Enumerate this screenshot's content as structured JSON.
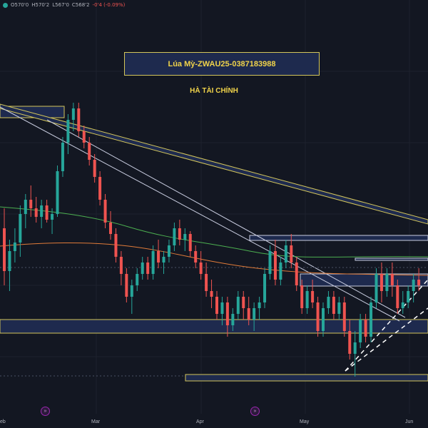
{
  "ohlc": {
    "open": "O570'0",
    "high": "H570'2",
    "low": "L567'0",
    "close": "C568'2",
    "change": "-0'4 (-0.09%)"
  },
  "title": "Lúa Mỳ-ZWAU25-0387183988",
  "subtitle": "HÀ TÀI CHÍNH",
  "x_axis": [
    "eb",
    "Mar",
    "Apr",
    "May",
    "Jun"
  ],
  "event_icons": [
    "event-icon",
    "event-icon"
  ],
  "colors": {
    "background": "#131722",
    "up": "#26a69a",
    "down": "#ef5350",
    "zone_fill": "#1e2a4e",
    "zone_border": "#d4c65a",
    "text_accent": "#f0d34a",
    "ma_long": "#4caf50",
    "ma_short": "#e07b39"
  },
  "chart_data": {
    "type": "candlestick",
    "y_axis": "price (not printed)",
    "candles": [
      {
        "o": 40,
        "h": 47,
        "l": 20,
        "c": 25
      },
      {
        "o": 25,
        "h": 36,
        "l": 18,
        "c": 32
      },
      {
        "o": 32,
        "h": 40,
        "l": 28,
        "c": 35
      },
      {
        "o": 35,
        "h": 48,
        "l": 30,
        "c": 45
      },
      {
        "o": 45,
        "h": 52,
        "l": 40,
        "c": 50
      },
      {
        "o": 50,
        "h": 55,
        "l": 44,
        "c": 47
      },
      {
        "o": 47,
        "h": 51,
        "l": 42,
        "c": 44
      },
      {
        "o": 44,
        "h": 50,
        "l": 40,
        "c": 48
      },
      {
        "o": 48,
        "h": 50,
        "l": 42,
        "c": 43
      },
      {
        "o": 43,
        "h": 47,
        "l": 38,
        "c": 45
      },
      {
        "o": 45,
        "h": 62,
        "l": 44,
        "c": 60
      },
      {
        "o": 60,
        "h": 72,
        "l": 58,
        "c": 70
      },
      {
        "o": 70,
        "h": 80,
        "l": 66,
        "c": 78
      },
      {
        "o": 78,
        "h": 84,
        "l": 74,
        "c": 82
      },
      {
        "o": 82,
        "h": 84,
        "l": 72,
        "c": 74
      },
      {
        "o": 74,
        "h": 76,
        "l": 68,
        "c": 70
      },
      {
        "o": 70,
        "h": 72,
        "l": 62,
        "c": 64
      },
      {
        "o": 64,
        "h": 66,
        "l": 56,
        "c": 58
      },
      {
        "o": 58,
        "h": 60,
        "l": 48,
        "c": 50
      },
      {
        "o": 50,
        "h": 52,
        "l": 40,
        "c": 42
      },
      {
        "o": 42,
        "h": 46,
        "l": 36,
        "c": 38
      },
      {
        "o": 38,
        "h": 40,
        "l": 28,
        "c": 30
      },
      {
        "o": 30,
        "h": 32,
        "l": 20,
        "c": 24
      },
      {
        "o": 24,
        "h": 26,
        "l": 14,
        "c": 16
      },
      {
        "o": 16,
        "h": 22,
        "l": 10,
        "c": 20
      },
      {
        "o": 20,
        "h": 26,
        "l": 18,
        "c": 24
      },
      {
        "o": 24,
        "h": 30,
        "l": 22,
        "c": 28
      },
      {
        "o": 28,
        "h": 30,
        "l": 22,
        "c": 24
      },
      {
        "o": 24,
        "h": 34,
        "l": 22,
        "c": 32
      },
      {
        "o": 32,
        "h": 36,
        "l": 26,
        "c": 28
      },
      {
        "o": 28,
        "h": 32,
        "l": 24,
        "c": 30
      },
      {
        "o": 30,
        "h": 36,
        "l": 28,
        "c": 34
      },
      {
        "o": 34,
        "h": 42,
        "l": 32,
        "c": 40
      },
      {
        "o": 40,
        "h": 43,
        "l": 34,
        "c": 36
      },
      {
        "o": 36,
        "h": 40,
        "l": 32,
        "c": 38
      },
      {
        "o": 38,
        "h": 39,
        "l": 30,
        "c": 32
      },
      {
        "o": 32,
        "h": 34,
        "l": 26,
        "c": 28
      },
      {
        "o": 28,
        "h": 32,
        "l": 22,
        "c": 24
      },
      {
        "o": 24,
        "h": 28,
        "l": 16,
        "c": 18
      },
      {
        "o": 18,
        "h": 22,
        "l": 12,
        "c": 16
      },
      {
        "o": 16,
        "h": 18,
        "l": 8,
        "c": 10
      },
      {
        "o": 10,
        "h": 16,
        "l": 6,
        "c": 14
      },
      {
        "o": 14,
        "h": 16,
        "l": 2,
        "c": 6
      },
      {
        "o": 6,
        "h": 12,
        "l": 4,
        "c": 10
      },
      {
        "o": 10,
        "h": 18,
        "l": 8,
        "c": 16
      },
      {
        "o": 16,
        "h": 18,
        "l": 8,
        "c": 12
      },
      {
        "o": 12,
        "h": 16,
        "l": 6,
        "c": 8
      },
      {
        "o": 8,
        "h": 14,
        "l": 4,
        "c": 12
      },
      {
        "o": 12,
        "h": 16,
        "l": 8,
        "c": 14
      },
      {
        "o": 14,
        "h": 26,
        "l": 12,
        "c": 24
      },
      {
        "o": 24,
        "h": 34,
        "l": 22,
        "c": 32
      },
      {
        "o": 32,
        "h": 36,
        "l": 20,
        "c": 22
      },
      {
        "o": 22,
        "h": 30,
        "l": 20,
        "c": 28
      },
      {
        "o": 28,
        "h": 36,
        "l": 26,
        "c": 34
      },
      {
        "o": 34,
        "h": 38,
        "l": 26,
        "c": 28
      },
      {
        "o": 28,
        "h": 30,
        "l": 18,
        "c": 20
      },
      {
        "o": 20,
        "h": 22,
        "l": 10,
        "c": 12
      },
      {
        "o": 12,
        "h": 20,
        "l": 10,
        "c": 18
      },
      {
        "o": 18,
        "h": 22,
        "l": 12,
        "c": 14
      },
      {
        "o": 14,
        "h": 16,
        "l": 2,
        "c": 4
      },
      {
        "o": 4,
        "h": 14,
        "l": 2,
        "c": 12
      },
      {
        "o": 12,
        "h": 18,
        "l": 10,
        "c": 16
      },
      {
        "o": 16,
        "h": 18,
        "l": 8,
        "c": 10
      },
      {
        "o": 10,
        "h": 16,
        "l": 8,
        "c": 14
      },
      {
        "o": 14,
        "h": 16,
        "l": 2,
        "c": 4
      },
      {
        "o": 4,
        "h": 8,
        "l": -6,
        "c": -4
      },
      {
        "o": -4,
        "h": 4,
        "l": -12,
        "c": 0
      },
      {
        "o": 0,
        "h": 10,
        "l": -2,
        "c": 8
      },
      {
        "o": 8,
        "h": 10,
        "l": 0,
        "c": 2
      },
      {
        "o": 2,
        "h": 16,
        "l": 0,
        "c": 14
      },
      {
        "o": 14,
        "h": 26,
        "l": 12,
        "c": 24
      },
      {
        "o": 24,
        "h": 28,
        "l": 14,
        "c": 18
      },
      {
        "o": 18,
        "h": 26,
        "l": 16,
        "c": 24
      },
      {
        "o": 24,
        "h": 28,
        "l": 16,
        "c": 20
      },
      {
        "o": 20,
        "h": 22,
        "l": 10,
        "c": 12
      },
      {
        "o": 12,
        "h": 18,
        "l": 10,
        "c": 14
      },
      {
        "o": 14,
        "h": 20,
        "l": 12,
        "c": 18
      },
      {
        "o": 18,
        "h": 24,
        "l": 14,
        "c": 22
      },
      {
        "o": 22,
        "h": 26,
        "l": 18,
        "c": 20
      }
    ],
    "xlabel": "",
    "ylabel": ""
  }
}
